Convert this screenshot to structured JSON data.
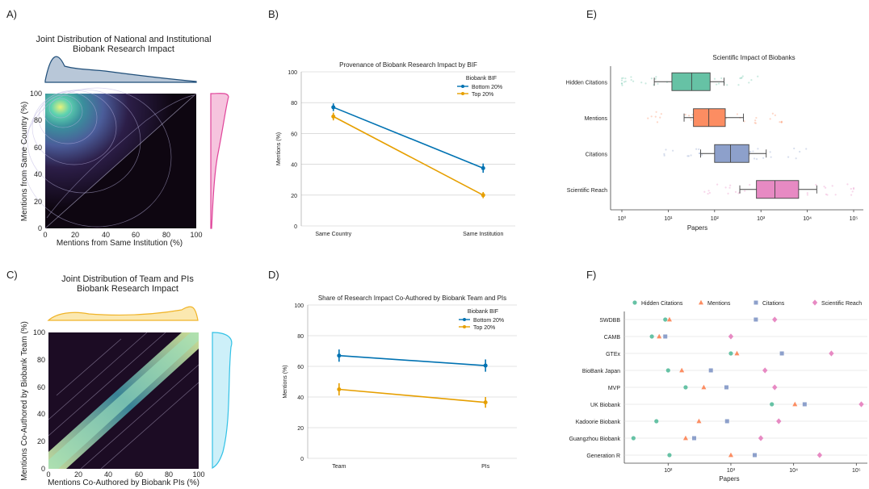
{
  "panels": {
    "A": {
      "letter": "A)",
      "title_line1": "Joint Distribution of National and Institutional",
      "title_line2": "Biobank Research Impact",
      "xlabel": "Mentions from Same Institution (%)",
      "ylabel": "Mentions from Same Country (%)",
      "ticks": [
        "0",
        "20",
        "40",
        "60",
        "80",
        "100"
      ],
      "colors": {
        "main": "#1f4e79",
        "margin_right": "#e0449a",
        "fill_right": "#f6c4de",
        "fill_top": "#b8c7d8"
      }
    },
    "C": {
      "letter": "C)",
      "title_line1": "Joint Distribution of Team and PIs",
      "title_line2": "Biobank Research Impact",
      "xlabel": "Mentions Co-Authored by Biobank PIs (%)",
      "ylabel": "Mentions Co-Authored by Biobank Team (%)",
      "ticks": [
        "0",
        "20",
        "40",
        "60",
        "80",
        "100"
      ],
      "colors": {
        "margin_top": "#f0b429",
        "fill_top": "#fbe8b0",
        "margin_right": "#33c2e6",
        "fill_right": "#cdf0f9"
      }
    },
    "B": {
      "letter": "B)"
    },
    "D": {
      "letter": "D)"
    },
    "E": {
      "letter": "E)"
    },
    "F": {
      "letter": "F)"
    }
  },
  "chart_data": [
    {
      "id": "B",
      "type": "line",
      "title": "Provenance of Biobank Research Impact by BIF",
      "xlabel": "",
      "ylabel": "Mentions (%)",
      "categories": [
        "Same Country",
        "Same Institution"
      ],
      "ylim": [
        0,
        100
      ],
      "yticks": [
        0,
        20,
        40,
        60,
        80,
        100
      ],
      "legend_title": "Biobank BIF",
      "legend_position": "top-right",
      "grid": "horizontal",
      "series": [
        {
          "name": "Bottom 20%",
          "color": "#0072b2",
          "values": [
            77,
            37.5
          ],
          "err": [
            2.5,
            3
          ]
        },
        {
          "name": "Top 20%",
          "color": "#e69f00",
          "values": [
            71,
            20
          ],
          "err": [
            2.5,
            2
          ]
        }
      ]
    },
    {
      "id": "D",
      "type": "line",
      "title": "Share of Research Impact Co-Authored by Biobank Team and PIs",
      "xlabel": "",
      "ylabel": "Mentions (%)",
      "categories": [
        "Team",
        "PIs"
      ],
      "ylim": [
        0,
        100
      ],
      "yticks": [
        0,
        20,
        40,
        60,
        80,
        100
      ],
      "legend_title": "Biobank BIF",
      "legend_position": "top-right",
      "grid": "horizontal",
      "series": [
        {
          "name": "Bottom 20%",
          "color": "#0072b2",
          "values": [
            67,
            60.5
          ],
          "err": [
            4,
            4
          ]
        },
        {
          "name": "Top 20%",
          "color": "#e69f00",
          "values": [
            45,
            36.5
          ],
          "err": [
            4,
            3.5
          ]
        }
      ]
    },
    {
      "id": "E",
      "type": "box",
      "title": "Scientific Impact of Biobanks",
      "xlabel": "Papers",
      "xscale": "log",
      "xlim": [
        1,
        100000
      ],
      "xticks": [
        "10⁰",
        "10¹",
        "10²",
        "10³",
        "10⁴",
        "10⁵"
      ],
      "categories": [
        "Hidden Citations",
        "Mentions",
        "Citations",
        "Scientific Reach"
      ],
      "boxes": [
        {
          "name": "Hidden Citations",
          "color": "#66c2a5",
          "whisker_low": 5,
          "q1": 12,
          "median": 32,
          "q3": 80,
          "whisker_high": 160
        },
        {
          "name": "Mentions",
          "color": "#fc8d62",
          "whisker_low": 22,
          "q1": 35,
          "median": 75,
          "q3": 170,
          "whisker_high": 420
        },
        {
          "name": "Citations",
          "color": "#8da0cb",
          "whisker_low": 50,
          "q1": 100,
          "median": 220,
          "q3": 550,
          "whisker_high": 1300
        },
        {
          "name": "Scientific Reach",
          "color": "#e78ac3",
          "whisker_low": 350,
          "q1": 800,
          "median": 2000,
          "q3": 6500,
          "whisker_high": 16000
        }
      ]
    },
    {
      "id": "F",
      "type": "scatter",
      "title": "",
      "xlabel": "Papers",
      "xscale": "log",
      "xlim": [
        20,
        150000
      ],
      "xticks": [
        "10²",
        "10³",
        "10⁴",
        "10⁵"
      ],
      "legend_position": "top",
      "categories": [
        "SWDBB",
        "CAMB",
        "GTEx",
        "BioBank Japan",
        "MVP",
        "UK Biobank",
        "Kadoorie Biobank",
        "Guangzhou Biobank",
        "Generation R"
      ],
      "series": [
        {
          "name": "Hidden Citations",
          "color": "#66c2a5",
          "marker": "circle",
          "values": [
            90,
            55,
            1000,
            100,
            190,
            4500,
            65,
            28,
            105
          ]
        },
        {
          "name": "Mentions",
          "color": "#fc8d62",
          "marker": "triangle",
          "values": [
            105,
            72,
            1250,
            165,
            370,
            10500,
            310,
            190,
            1000
          ]
        },
        {
          "name": "Citations",
          "color": "#8da0cb",
          "marker": "square",
          "values": [
            2500,
            90,
            6500,
            480,
            850,
            15000,
            870,
            260,
            2400
          ]
        },
        {
          "name": "Scientific Reach",
          "color": "#e78ac3",
          "marker": "diamond",
          "values": [
            5000,
            1000,
            40000,
            3500,
            5000,
            120000,
            5800,
            3000,
            26000
          ]
        }
      ]
    }
  ]
}
